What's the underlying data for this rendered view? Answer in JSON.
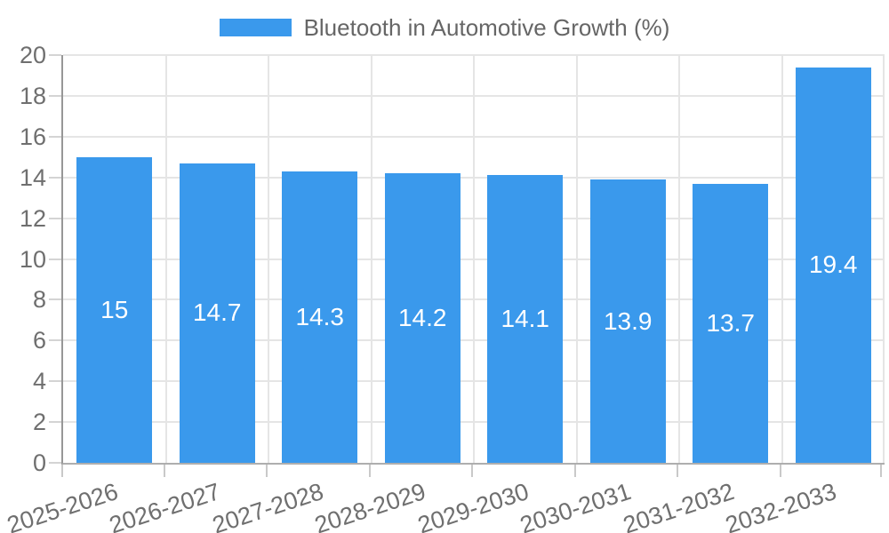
{
  "chart_data": {
    "type": "bar",
    "title": "Bluetooth in Automotive Growth (%)",
    "categories": [
      "2025-2026",
      "2026-2027",
      "2027-2028",
      "2028-2029",
      "2029-2030",
      "2030-2031",
      "2031-2032",
      "2032-2033"
    ],
    "values": [
      15,
      14.7,
      14.3,
      14.2,
      14.1,
      13.9,
      13.7,
      19.4
    ],
    "xlabel": "",
    "ylabel": "",
    "ylim": [
      0,
      20
    ],
    "y_ticks": [
      0,
      2,
      4,
      6,
      8,
      10,
      12,
      14,
      16,
      18,
      20
    ],
    "grid": true,
    "legend_position": "top",
    "colors": {
      "bar": "#3a99ec",
      "grid": "#e5e5e5",
      "axis": "#979797",
      "baseline": "#aeaeae",
      "tick_text": "#6f6f6f",
      "legend_text": "#666666",
      "bar_label": "#ffffff"
    }
  }
}
